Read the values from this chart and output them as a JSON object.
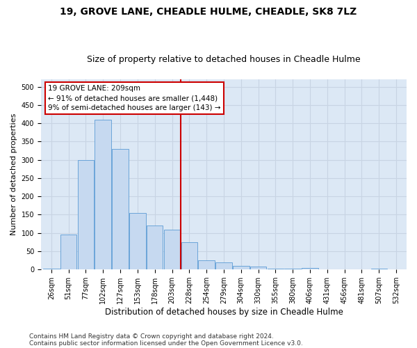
{
  "title1": "19, GROVE LANE, CHEADLE HULME, CHEADLE, SK8 7LZ",
  "title2": "Size of property relative to detached houses in Cheadle Hulme",
  "xlabel": "Distribution of detached houses by size in Cheadle Hulme",
  "ylabel": "Number of detached properties",
  "bins": [
    "26sqm",
    "51sqm",
    "77sqm",
    "102sqm",
    "127sqm",
    "153sqm",
    "178sqm",
    "203sqm",
    "228sqm",
    "254sqm",
    "279sqm",
    "304sqm",
    "330sqm",
    "355sqm",
    "380sqm",
    "406sqm",
    "431sqm",
    "456sqm",
    "481sqm",
    "507sqm",
    "532sqm"
  ],
  "values": [
    2,
    95,
    300,
    410,
    330,
    155,
    120,
    110,
    75,
    25,
    20,
    10,
    8,
    3,
    2,
    4,
    1,
    1,
    0,
    2,
    1
  ],
  "bar_color": "#c6d9f0",
  "bar_edge_color": "#5b9bd5",
  "grid_color": "#c8d4e3",
  "vline_bin_index": 7.5,
  "vline_color": "#cc0000",
  "annotation_text": "19 GROVE LANE: 209sqm\n← 91% of detached houses are smaller (1,448)\n9% of semi-detached houses are larger (143) →",
  "annotation_box_color": "#cc0000",
  "ylim": [
    0,
    520
  ],
  "yticks": [
    0,
    50,
    100,
    150,
    200,
    250,
    300,
    350,
    400,
    450,
    500
  ],
  "footnote1": "Contains HM Land Registry data © Crown copyright and database right 2024.",
  "footnote2": "Contains public sector information licensed under the Open Government Licence v3.0.",
  "bg_color": "#dce8f5",
  "title1_fontsize": 10,
  "title2_fontsize": 9,
  "xlabel_fontsize": 8.5,
  "ylabel_fontsize": 8,
  "tick_fontsize": 7,
  "footnote_fontsize": 6.5
}
